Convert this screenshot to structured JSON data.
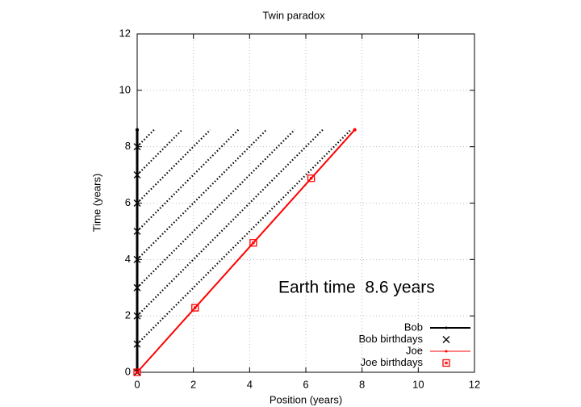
{
  "chart_data": {
    "type": "line",
    "title": "Twin paradox",
    "x_label": "Position (years)",
    "y_label": "Time (years)",
    "xlim": [
      0,
      12
    ],
    "ylim": [
      0,
      12
    ],
    "xticks": [
      0,
      2,
      4,
      6,
      8,
      10,
      12
    ],
    "yticks": [
      0,
      2,
      4,
      6,
      8,
      10,
      12
    ],
    "grid": true,
    "legend": "lower right",
    "annotation": "Earth time  8.6 years",
    "series": [
      {
        "name": "Bob",
        "color": "#000000",
        "style": "linepoints",
        "x": [
          0,
          0
        ],
        "y": [
          0,
          8.6
        ]
      },
      {
        "name": "Bob birthdays",
        "color": "#000000",
        "style": "x",
        "x": [
          0,
          0,
          0,
          0,
          0,
          0,
          0,
          0,
          0
        ],
        "y": [
          0,
          1,
          2,
          3,
          4,
          5,
          6,
          7,
          8
        ]
      },
      {
        "name": "Joe",
        "color": "#ff0000",
        "style": "linepoints",
        "x": [
          0,
          7.74
        ],
        "y": [
          0,
          8.6
        ]
      },
      {
        "name": "Joe birthdays",
        "color": "#ff0000",
        "style": "square",
        "x": [
          0,
          2.06,
          4.13,
          6.19
        ],
        "y": [
          0,
          2.29,
          4.59,
          6.88
        ]
      }
    ],
    "light_signals": {
      "color": "#000000",
      "lines": [
        {
          "x": [
            0,
            7.6
          ],
          "y": [
            1,
            8.6
          ]
        },
        {
          "x": [
            0,
            6.6
          ],
          "y": [
            2,
            8.6
          ]
        },
        {
          "x": [
            0,
            5.6
          ],
          "y": [
            3,
            8.6
          ]
        },
        {
          "x": [
            0,
            4.6
          ],
          "y": [
            4,
            8.6
          ]
        },
        {
          "x": [
            0,
            3.6
          ],
          "y": [
            5,
            8.6
          ]
        },
        {
          "x": [
            0,
            2.6
          ],
          "y": [
            6,
            8.6
          ]
        },
        {
          "x": [
            0,
            1.6
          ],
          "y": [
            7,
            8.6
          ]
        },
        {
          "x": [
            0,
            0.6
          ],
          "y": [
            8,
            8.6
          ]
        }
      ]
    }
  }
}
